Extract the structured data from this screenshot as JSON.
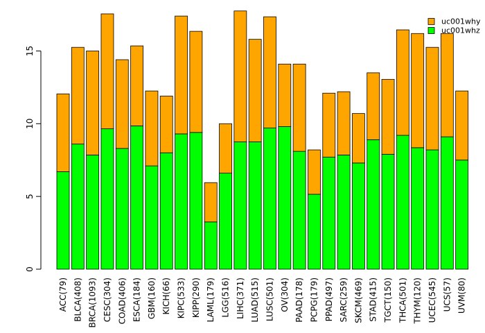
{
  "chart_data": {
    "type": "bar",
    "stacked": true,
    "title": "",
    "xlabel": "",
    "ylabel": "",
    "ylim": [
      0,
      17.8
    ],
    "yticks": [
      0,
      5,
      10,
      15
    ],
    "grid": false,
    "legend_position": "top-right",
    "categories": [
      "ACC(79)",
      "BLCA(408)",
      "BRCA(1093)",
      "CESC(304)",
      "COAD(406)",
      "ESCA(184)",
      "GBM(160)",
      "KICH(66)",
      "KIPC(533)",
      "KIPP(290)",
      "LAML(179)",
      "LGG(516)",
      "LIHC(371)",
      "LUAD(515)",
      "LUSC(501)",
      "OV(304)",
      "PAAD(178)",
      "PCPG(179)",
      "PPAD(497)",
      "SARC(259)",
      "SKCM(469)",
      "STAD(415)",
      "TGCT(150)",
      "THCA(501)",
      "THYM(120)",
      "UCEC(545)",
      "UCS(57)",
      "UVM(80)"
    ],
    "series": [
      {
        "name": "uc001whz",
        "color": "#00ff00",
        "values": [
          6.7,
          8.6,
          7.85,
          9.65,
          8.3,
          9.85,
          7.1,
          8.0,
          9.3,
          9.4,
          3.25,
          6.6,
          8.75,
          8.75,
          9.7,
          9.8,
          8.1,
          5.15,
          7.7,
          7.85,
          7.3,
          8.9,
          7.9,
          9.2,
          8.35,
          8.2,
          9.1,
          7.5
        ]
      },
      {
        "name": "uc001why",
        "color": "#ffa500",
        "values": [
          5.35,
          6.65,
          7.15,
          7.9,
          6.1,
          5.5,
          5.15,
          3.9,
          8.1,
          6.95,
          2.7,
          3.4,
          9.0,
          7.05,
          7.65,
          4.3,
          6.0,
          3.05,
          4.4,
          4.35,
          3.4,
          4.6,
          5.15,
          7.25,
          7.85,
          7.05,
          7.1,
          4.75
        ]
      }
    ]
  }
}
